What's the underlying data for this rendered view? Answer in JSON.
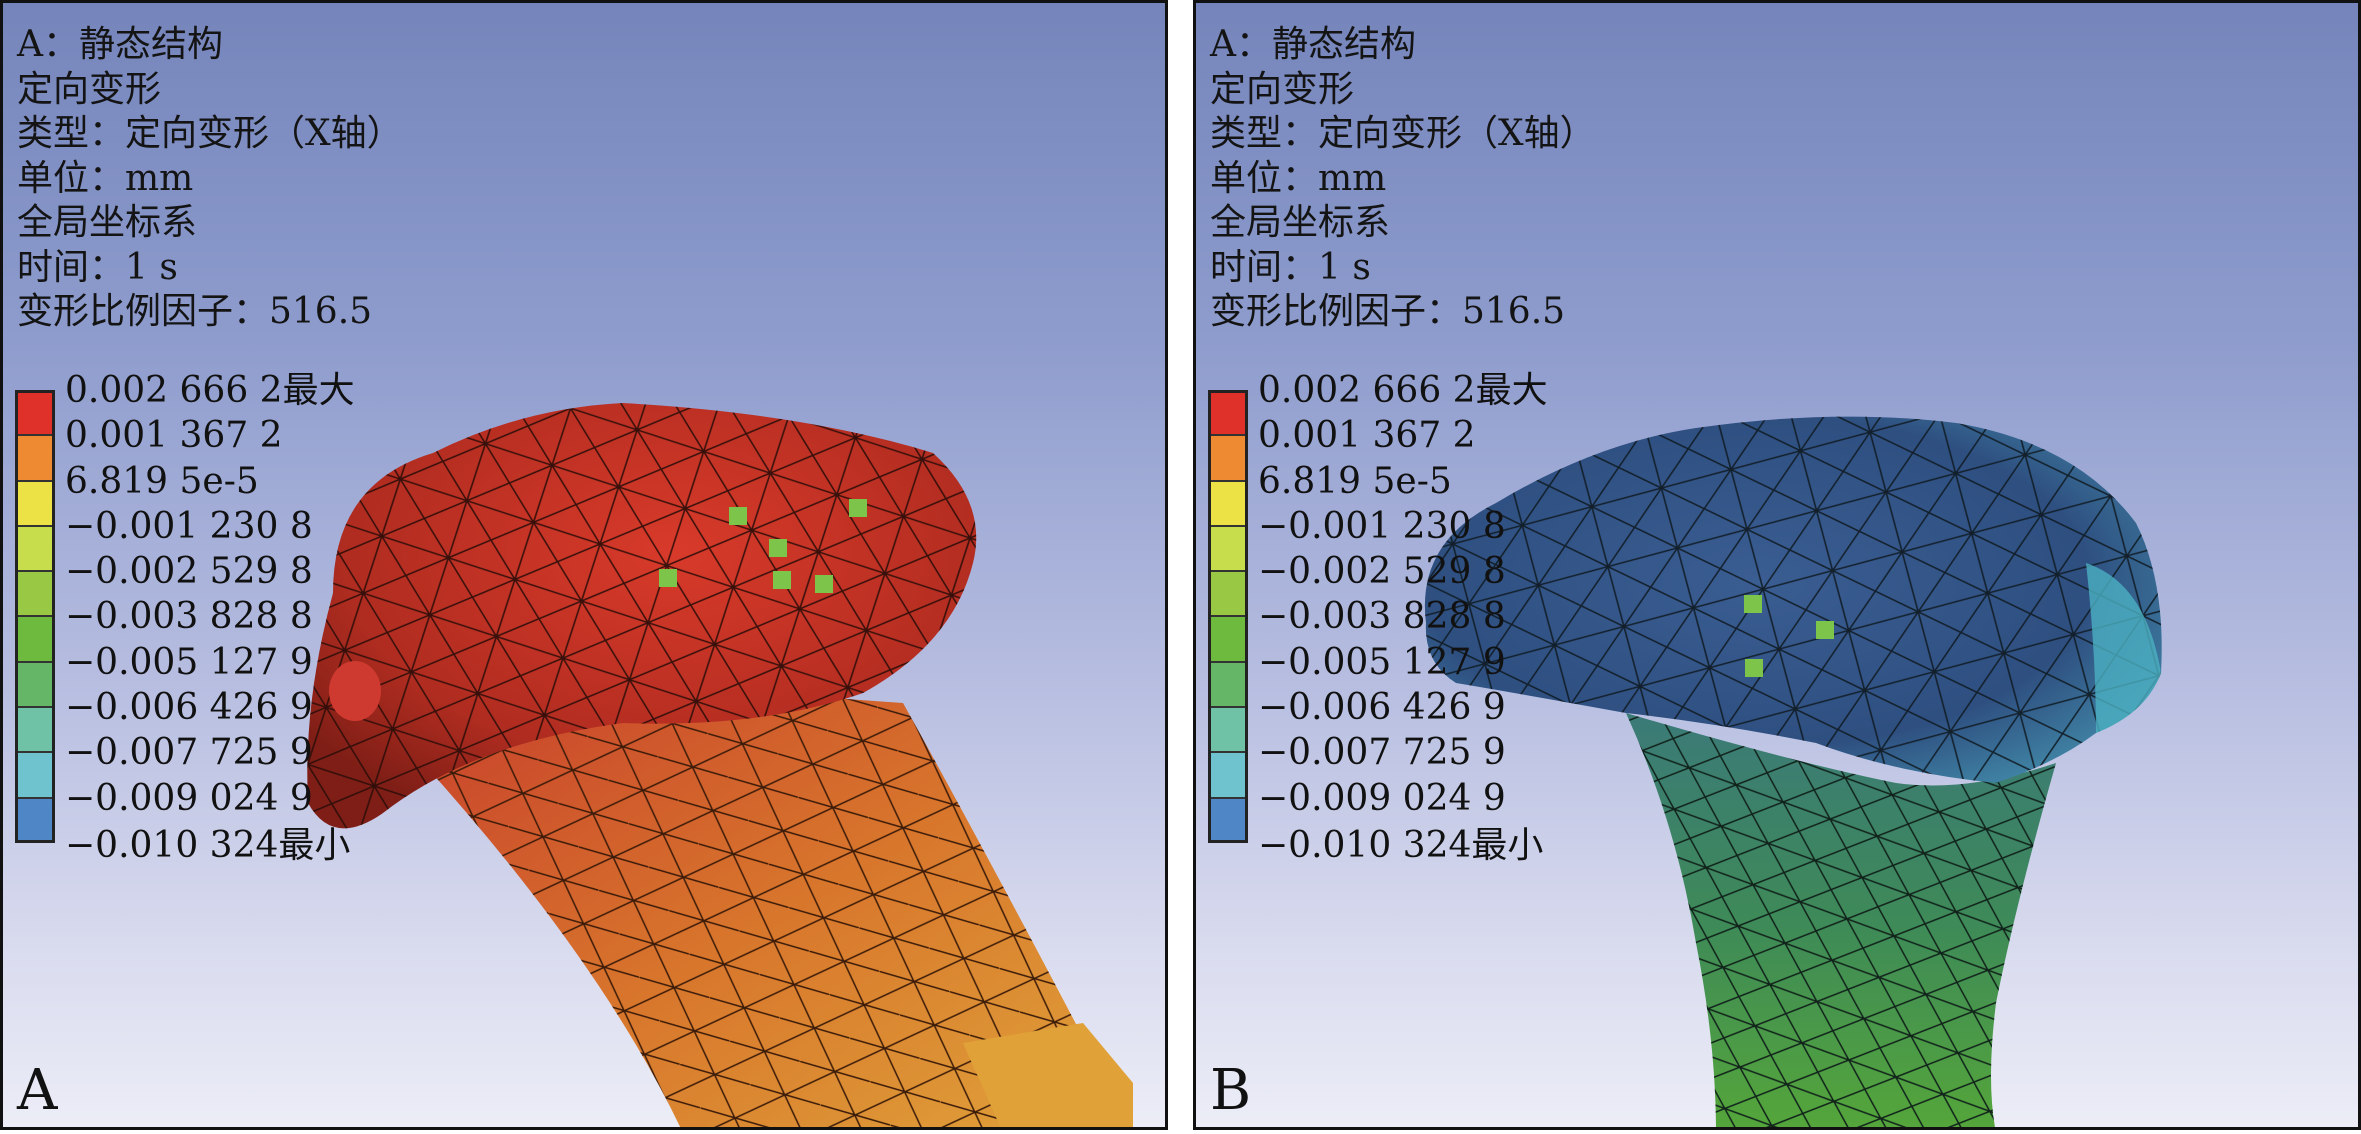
{
  "panels": [
    {
      "letter": "A",
      "info": [
        "A：静态结构",
        "定向变形",
        "类型：定向变形（X轴）",
        "单位：mm",
        "全局坐标系",
        "时间：1 s",
        "变形比例因子：516.5"
      ],
      "model_color": "red"
    },
    {
      "letter": "B",
      "info": [
        "A：静态结构",
        "定向变形",
        "类型：定向变形（X轴）",
        "单位：mm",
        "全局坐标系",
        "时间：1 s",
        "变形比例因子：516.5"
      ],
      "model_color": "blue-green"
    }
  ],
  "legend": {
    "labels": [
      "0.002 666 2最大",
      "0.001 367 2",
      "6.819 5e-5",
      "−0.001 230 8",
      "−0.002 529 8",
      "−0.003 828 8",
      "−0.005 127 9",
      "−0.006 426 9",
      "−0.007 725 9",
      "−0.009 024 9",
      "−0.010 324最小"
    ],
    "colors": [
      "#e0302a",
      "#ee8b32",
      "#ece145",
      "#c7dd4b",
      "#99c944",
      "#6eba3f",
      "#65b667",
      "#6fc2a6",
      "#6ec3cf",
      "#4f86c6",
      "#3f4a9a"
    ]
  },
  "colors": {
    "background_top": "#7585bb",
    "background_bottom": "#ecedf7",
    "marker": "#7cc44a"
  }
}
